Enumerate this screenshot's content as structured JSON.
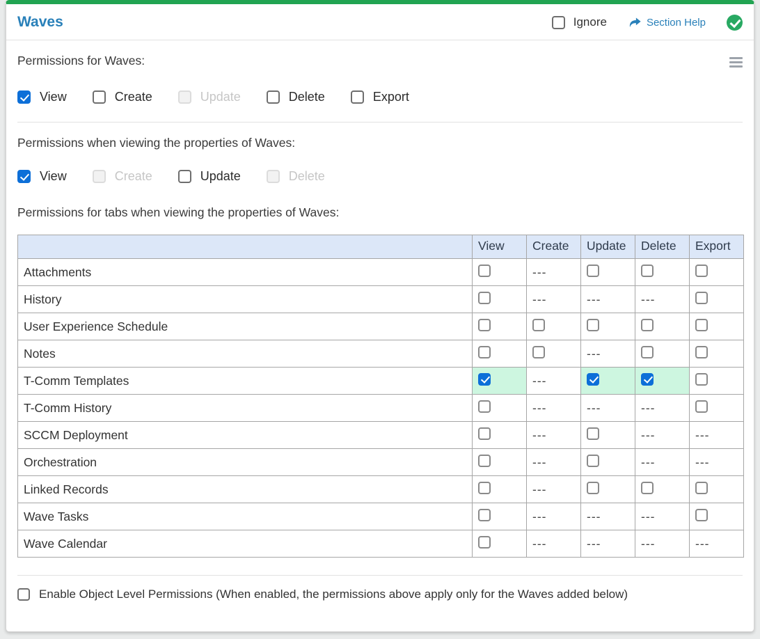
{
  "header": {
    "title": "Waves",
    "ignore_label": "Ignore",
    "ignore_checked": false,
    "section_help_label": "Section Help",
    "status": "complete"
  },
  "icons": {
    "status": "check-circle-icon",
    "help": "forward-arrow-icon",
    "menu": "hamburger-menu-icon"
  },
  "colors": {
    "accent_green": "#21a452",
    "status_green": "#28a962",
    "title_blue": "#2980b9",
    "link_blue": "#2980b9",
    "checkbox_blue": "#0d6fd8",
    "checked_cell_green": "#cdf6e0",
    "table_header_blue": "#dce7f8"
  },
  "sections": {
    "object_permissions": {
      "label": "Permissions for Waves:",
      "checkboxes": [
        {
          "label": "View",
          "checked": true,
          "disabled": false
        },
        {
          "label": "Create",
          "checked": false,
          "disabled": false
        },
        {
          "label": "Update",
          "checked": false,
          "disabled": true
        },
        {
          "label": "Delete",
          "checked": false,
          "disabled": false
        },
        {
          "label": "Export",
          "checked": false,
          "disabled": false
        }
      ]
    },
    "properties_permissions": {
      "label": "Permissions when viewing the properties of Waves:",
      "checkboxes": [
        {
          "label": "View",
          "checked": true,
          "disabled": false
        },
        {
          "label": "Create",
          "checked": false,
          "disabled": true
        },
        {
          "label": "Update",
          "checked": false,
          "disabled": false
        },
        {
          "label": "Delete",
          "checked": false,
          "disabled": true
        }
      ]
    },
    "tabs_permissions": {
      "label": "Permissions for tabs when viewing the properties of Waves:"
    }
  },
  "table": {
    "na_text": "---",
    "columns": [
      "View",
      "Create",
      "Update",
      "Delete",
      "Export"
    ],
    "rows": [
      {
        "name": "Attachments",
        "cells": [
          "unchecked",
          "na",
          "unchecked",
          "unchecked",
          "unchecked"
        ]
      },
      {
        "name": "History",
        "cells": [
          "unchecked",
          "na",
          "na",
          "na",
          "unchecked"
        ]
      },
      {
        "name": "User Experience Schedule",
        "cells": [
          "unchecked",
          "unchecked",
          "unchecked",
          "unchecked",
          "unchecked"
        ]
      },
      {
        "name": "Notes",
        "cells": [
          "unchecked",
          "unchecked",
          "na",
          "unchecked",
          "unchecked"
        ]
      },
      {
        "name": "T-Comm Templates",
        "cells": [
          "checked",
          "na",
          "checked",
          "checked",
          "unchecked"
        ]
      },
      {
        "name": "T-Comm History",
        "cells": [
          "unchecked",
          "na",
          "na",
          "na",
          "unchecked"
        ]
      },
      {
        "name": "SCCM Deployment",
        "cells": [
          "unchecked",
          "na",
          "unchecked",
          "na",
          "na"
        ]
      },
      {
        "name": "Orchestration",
        "cells": [
          "unchecked",
          "na",
          "unchecked",
          "na",
          "na"
        ]
      },
      {
        "name": "Linked Records",
        "cells": [
          "unchecked",
          "na",
          "unchecked",
          "unchecked",
          "unchecked"
        ]
      },
      {
        "name": "Wave Tasks",
        "cells": [
          "unchecked",
          "na",
          "na",
          "na",
          "unchecked"
        ]
      },
      {
        "name": "Wave Calendar",
        "cells": [
          "unchecked",
          "na",
          "na",
          "na",
          "na"
        ]
      }
    ]
  },
  "footer": {
    "enable_label": "Enable Object Level Permissions (When enabled, the permissions above apply only for the Waves added below)",
    "enable_checked": false
  }
}
